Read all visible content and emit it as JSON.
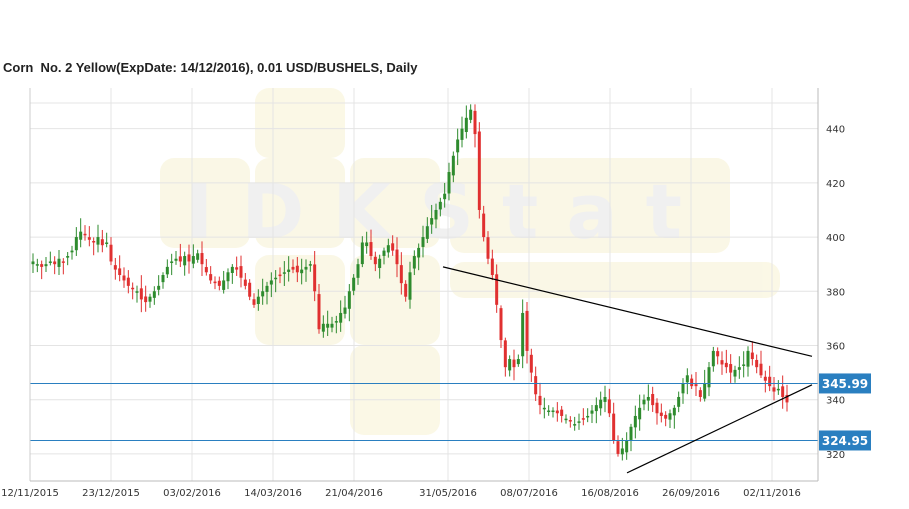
{
  "header": {
    "title": "Corn  No. 2 Yellow(ExpDate: 14/12/2016), 0.01 USD/BUSHELS, Daily"
  },
  "watermark": {
    "text": "IDKStat"
  },
  "chart_data": {
    "type": "candlestick",
    "title": "Corn  No. 2 Yellow(ExpDate: 14/12/2016), 0.01 USD/BUSHELS, Daily",
    "y_ticks": [
      320,
      340,
      360,
      380,
      400,
      420,
      440
    ],
    "ylim": [
      310,
      455
    ],
    "x_tick_labels": [
      "12/11/2015",
      "23/12/2015",
      "03/02/2016",
      "14/03/2016",
      "21/04/2016",
      "31/05/2016",
      "08/07/2016",
      "16/08/2016",
      "26/09/2016",
      "02/11/2016"
    ],
    "grid": true,
    "colors": {
      "up": "#2e8b2e",
      "down": "#e03030",
      "level": "#2a7fc0",
      "badge": "#2a7fc0",
      "trend": "#000000",
      "grid": "#e4e4e4"
    },
    "levels": [
      {
        "label": "345.99",
        "value": 345.99
      },
      {
        "label": "324.95",
        "value": 324.95
      }
    ],
    "trendlines": [
      {
        "from": [
          0,
          390
        ],
        "to": [
          1,
          355
        ]
      },
      {
        "from": [
          0.45,
          312
        ],
        "to": [
          1,
          345
        ]
      }
    ],
    "closes": [
      391,
      390,
      389,
      390,
      391,
      390,
      392,
      391,
      393,
      395,
      400,
      402,
      401,
      399,
      398,
      400,
      397,
      398,
      391,
      388,
      386,
      384,
      382,
      381,
      380,
      377,
      376,
      378,
      380,
      382,
      386,
      389,
      391,
      392,
      391,
      393,
      391,
      393,
      394,
      390,
      387,
      384,
      383,
      382,
      384,
      387,
      389,
      388,
      385,
      382,
      378,
      375,
      378,
      380,
      382,
      384,
      385,
      386,
      387,
      388,
      388,
      387,
      388,
      389,
      390,
      380,
      366,
      368,
      368,
      368,
      369,
      372,
      374,
      380,
      385,
      390,
      398,
      398,
      393,
      390,
      392,
      395,
      397,
      395,
      390,
      383,
      378,
      387,
      393,
      396,
      400,
      404,
      407,
      410,
      413,
      416,
      424,
      430,
      436,
      440,
      444,
      447,
      438,
      410,
      400,
      392,
      386,
      375,
      362,
      352,
      355,
      352,
      355,
      372,
      358,
      350,
      342,
      338,
      337,
      336,
      336,
      335,
      334,
      333,
      332,
      331,
      332,
      333,
      334,
      336,
      338,
      340,
      341,
      335,
      325,
      320,
      322,
      325,
      330,
      334,
      337,
      340,
      341,
      338,
      335,
      334,
      333,
      335,
      337,
      341,
      346,
      349,
      345,
      345,
      341,
      346,
      352,
      358,
      356,
      353,
      352,
      350,
      351,
      352,
      353,
      358,
      355,
      352,
      349,
      347,
      345,
      343,
      344,
      341,
      339
    ]
  }
}
